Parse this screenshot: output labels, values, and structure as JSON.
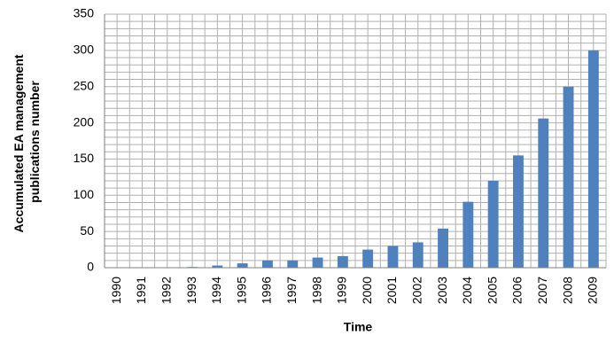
{
  "chart_data": {
    "type": "bar",
    "title": "",
    "xlabel": "Time",
    "ylabel": [
      "Accumulated EA management",
      "publications number"
    ],
    "ylim": [
      0,
      350
    ],
    "yticks": [
      0,
      50,
      100,
      150,
      200,
      250,
      300,
      350
    ],
    "grid": true,
    "legend": "none",
    "bar_color": "#4f81bd",
    "categories": [
      "1990",
      "1991",
      "1992",
      "1993",
      "1994",
      "1995",
      "1996",
      "1997",
      "1998",
      "1999",
      "2000",
      "2001",
      "2002",
      "2003",
      "2004",
      "2005",
      "2006",
      "2007",
      "2008",
      "2009"
    ],
    "values": [
      0,
      0,
      0,
      1,
      3,
      6,
      10,
      10,
      14,
      16,
      25,
      30,
      35,
      54,
      91,
      120,
      155,
      206,
      250,
      300
    ]
  }
}
